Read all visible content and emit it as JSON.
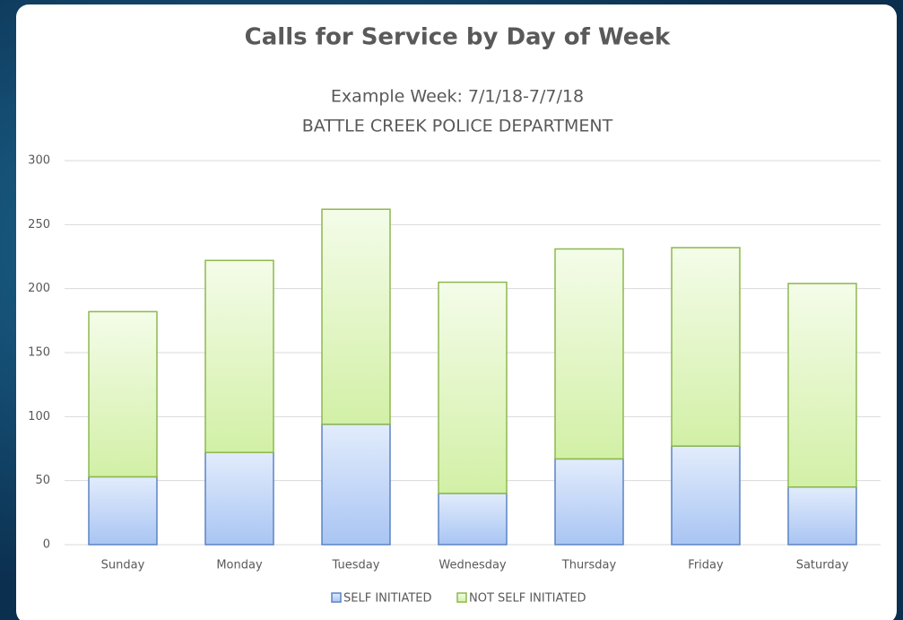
{
  "chart_data": {
    "type": "stacked_bar",
    "title": "Calls for Service by Day of Week",
    "subtitle": [
      "Example Week: 7/1/18-7/7/18",
      "BATTLE CREEK POLICE DEPARTMENT"
    ],
    "categories": [
      "Sunday",
      "Monday",
      "Tuesday",
      "Wednesday",
      "Thursday",
      "Friday",
      "Saturday"
    ],
    "series": [
      {
        "name": "SELF INITIATED",
        "color": "#5b84c4",
        "values": [
          53,
          72,
          94,
          40,
          67,
          77,
          45
        ]
      },
      {
        "name": "NOT SELF INITIATED",
        "color": "#8db84e",
        "values": [
          129,
          150,
          168,
          165,
          164,
          155,
          159
        ]
      }
    ],
    "ylim": [
      0,
      300
    ],
    "yticks": [
      0,
      50,
      100,
      150,
      200,
      250,
      300
    ],
    "grid": true,
    "legend": "bottom"
  }
}
